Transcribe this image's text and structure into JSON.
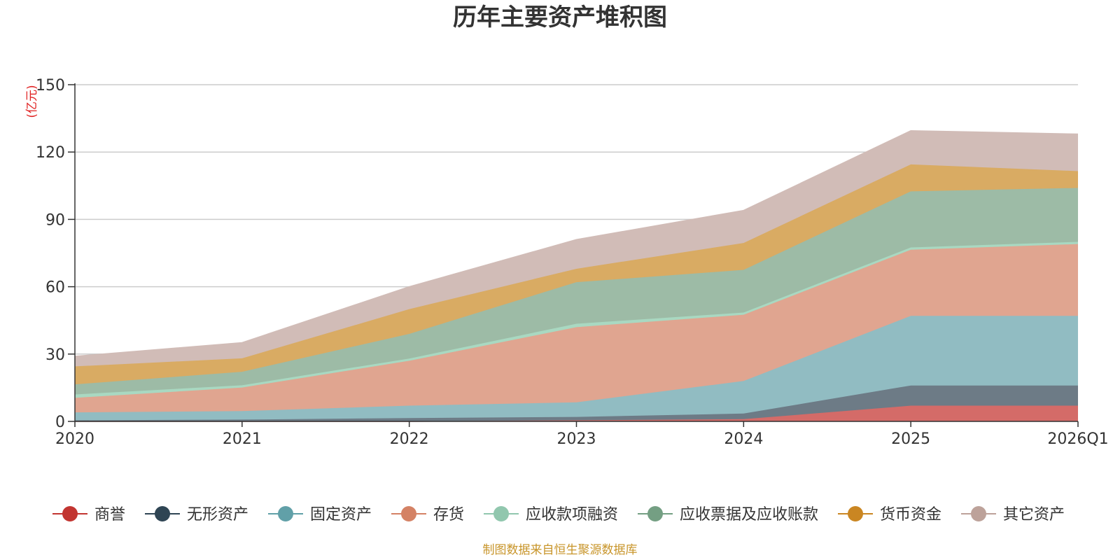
{
  "chart_data": {
    "type": "area",
    "stacked": true,
    "title": "历年主要资产堆积图",
    "unit_label": "(亿元)",
    "categories": [
      "2020",
      "2021",
      "2022",
      "2023",
      "2024",
      "2025",
      "2026Q1"
    ],
    "ylim": [
      0,
      150
    ],
    "yticks": [
      0,
      30,
      60,
      90,
      120,
      150
    ],
    "grid": true,
    "legend_position": "bottom",
    "series": [
      {
        "name": "商誉",
        "color": "#c23531",
        "fill": "#d46b68",
        "values": [
          0,
          0,
          0,
          0.5,
          1,
          7,
          7
        ]
      },
      {
        "name": "无形资产",
        "color": "#2f4554",
        "fill": "#6d7b86",
        "values": [
          0.5,
          0.8,
          1.5,
          1.5,
          2.5,
          9,
          9
        ]
      },
      {
        "name": "固定资产",
        "color": "#61a0a8",
        "fill": "#91bcc2",
        "values": [
          3.5,
          3.8,
          5.5,
          6.5,
          14.5,
          31,
          31
        ]
      },
      {
        "name": "存货",
        "color": "#d48265",
        "fill": "#e0a590",
        "values": [
          6.5,
          10.5,
          20,
          33.5,
          29.5,
          29.5,
          32
        ]
      },
      {
        "name": "应收款项融资",
        "color": "#91c7ae",
        "fill": "#a9d8c1",
        "values": [
          1.5,
          1,
          1,
          1.5,
          1,
          1,
          1
        ]
      },
      {
        "name": "应收票据及应收账款",
        "color": "#749f83",
        "fill": "#9dbba6",
        "values": [
          4.5,
          6,
          11,
          18.5,
          19,
          25,
          24
        ]
      },
      {
        "name": "货币资金",
        "color": "#ca8622",
        "fill": "#d9ab63",
        "values": [
          8,
          6,
          11,
          6,
          12,
          12,
          7.5
        ]
      },
      {
        "name": "其它资产",
        "color": "#bda29a",
        "fill": "#d1bcb7",
        "values": [
          4.5,
          7,
          10,
          13,
          14.5,
          15,
          16.5
        ]
      }
    ],
    "source_note": "制图数据来自恒生聚源数据库"
  }
}
